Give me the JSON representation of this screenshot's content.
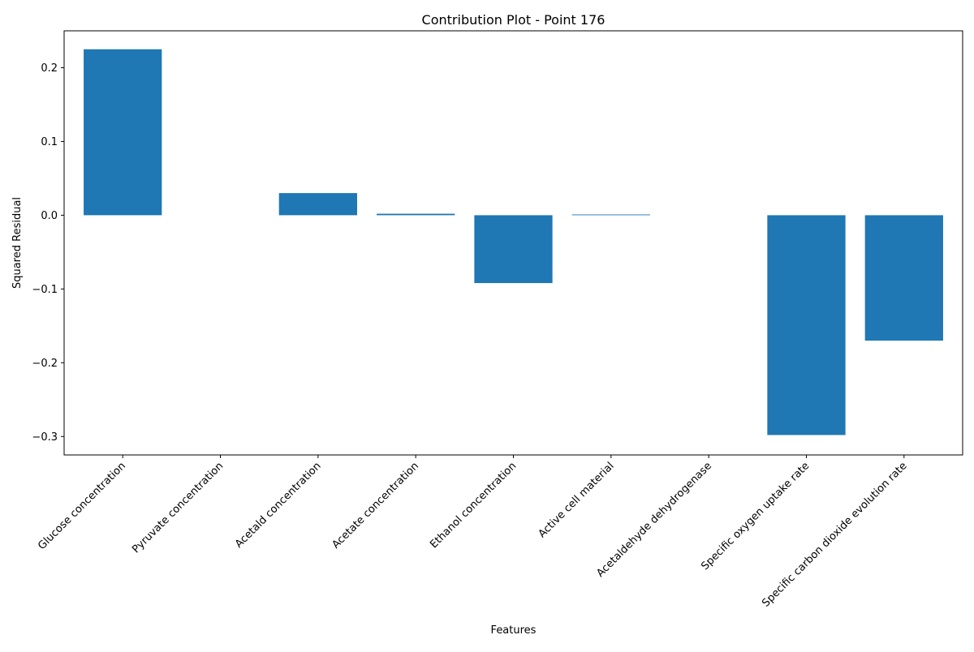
{
  "chart_data": {
    "type": "bar",
    "title": "Contribution Plot - Point 176",
    "xlabel": "Features",
    "ylabel": "Squared Residual",
    "categories": [
      "Glucose concentration",
      "Pyruvate concentration",
      "Acetald concentration",
      "Acetate concentration",
      "Ethanol concentration",
      "Active cell material",
      "Acetaldehyde dehydrogenase",
      "Specific oxygen uptake rate",
      "Specific carbon dioxide evolution rate"
    ],
    "values": [
      0.225,
      0.0,
      0.03,
      0.002,
      -0.092,
      0.001,
      0.0,
      -0.298,
      -0.17
    ],
    "ylim": [
      -0.325,
      0.25
    ],
    "yticks": [
      -0.3,
      -0.2,
      -0.1,
      0.0,
      0.1,
      0.2
    ],
    "ytick_labels": [
      "−0.3",
      "−0.2",
      "−0.1",
      "0.0",
      "0.1",
      "0.2"
    ],
    "bar_color": "#1f77b4",
    "grid": false,
    "legend": "none"
  }
}
